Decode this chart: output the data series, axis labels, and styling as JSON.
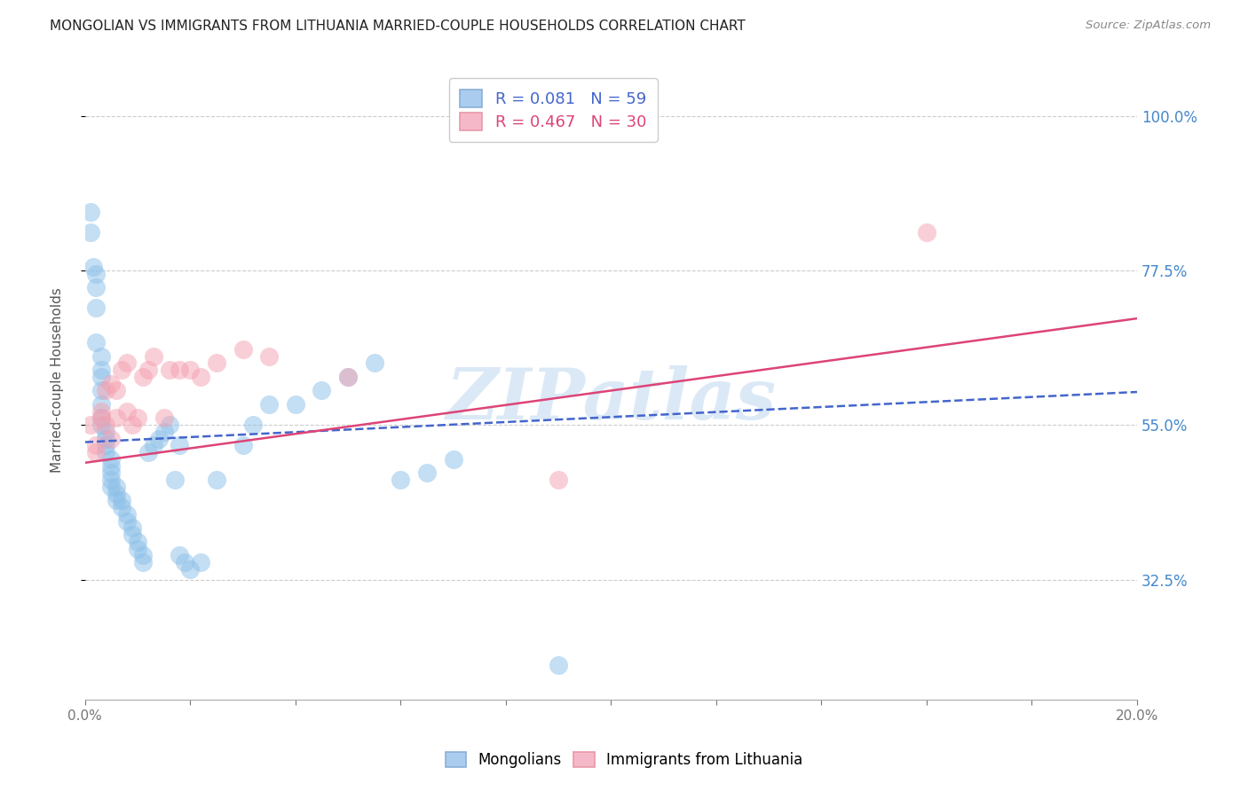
{
  "title": "MONGOLIAN VS IMMIGRANTS FROM LITHUANIA MARRIED-COUPLE HOUSEHOLDS CORRELATION CHART",
  "source": "Source: ZipAtlas.com",
  "ylabel": "Married-couple Households",
  "ytick_labels": [
    "32.5%",
    "55.0%",
    "77.5%",
    "100.0%"
  ],
  "ytick_values": [
    0.325,
    0.55,
    0.775,
    1.0
  ],
  "xmin": 0.0,
  "xmax": 0.2,
  "ymin": 0.15,
  "ymax": 1.08,
  "legend_entry1": "R = 0.081   N = 59",
  "legend_entry2": "R = 0.467   N = 30",
  "watermark": "ZIPatlas",
  "series1_color": "#8bbfe8",
  "series2_color": "#f5a0b0",
  "line1_color": "#4466cc",
  "line2_color": "#dd4477",
  "mongolians_x": [
    0.001,
    0.001,
    0.0015,
    0.002,
    0.002,
    0.002,
    0.002,
    0.003,
    0.003,
    0.003,
    0.003,
    0.003,
    0.003,
    0.003,
    0.004,
    0.004,
    0.004,
    0.004,
    0.005,
    0.005,
    0.005,
    0.005,
    0.005,
    0.006,
    0.006,
    0.006,
    0.007,
    0.007,
    0.008,
    0.008,
    0.009,
    0.009,
    0.01,
    0.01,
    0.011,
    0.011,
    0.012,
    0.013,
    0.014,
    0.015,
    0.016,
    0.017,
    0.018,
    0.019,
    0.02,
    0.022,
    0.025,
    0.03,
    0.032,
    0.035,
    0.04,
    0.045,
    0.05,
    0.055,
    0.06,
    0.065,
    0.07,
    0.09,
    0.018
  ],
  "mongolians_y": [
    0.86,
    0.83,
    0.78,
    0.77,
    0.75,
    0.72,
    0.67,
    0.65,
    0.63,
    0.62,
    0.6,
    0.58,
    0.56,
    0.55,
    0.54,
    0.53,
    0.52,
    0.51,
    0.5,
    0.49,
    0.48,
    0.47,
    0.46,
    0.46,
    0.45,
    0.44,
    0.44,
    0.43,
    0.42,
    0.41,
    0.4,
    0.39,
    0.38,
    0.37,
    0.36,
    0.35,
    0.51,
    0.52,
    0.53,
    0.54,
    0.55,
    0.47,
    0.52,
    0.35,
    0.34,
    0.35,
    0.47,
    0.52,
    0.55,
    0.58,
    0.58,
    0.6,
    0.62,
    0.64,
    0.47,
    0.48,
    0.5,
    0.2,
    0.36
  ],
  "lithuania_x": [
    0.001,
    0.002,
    0.002,
    0.003,
    0.003,
    0.004,
    0.004,
    0.005,
    0.005,
    0.006,
    0.006,
    0.007,
    0.008,
    0.008,
    0.009,
    0.01,
    0.011,
    0.012,
    0.013,
    0.015,
    0.016,
    0.018,
    0.02,
    0.022,
    0.025,
    0.03,
    0.035,
    0.05,
    0.09,
    0.16
  ],
  "lithuania_y": [
    0.55,
    0.52,
    0.51,
    0.56,
    0.57,
    0.55,
    0.6,
    0.53,
    0.61,
    0.56,
    0.6,
    0.63,
    0.64,
    0.57,
    0.55,
    0.56,
    0.62,
    0.63,
    0.65,
    0.56,
    0.63,
    0.63,
    0.63,
    0.62,
    0.64,
    0.66,
    0.65,
    0.62,
    0.47,
    0.83
  ],
  "line1_x": [
    0.0,
    0.2
  ],
  "line1_y": [
    0.525,
    0.598
  ],
  "line2_x": [
    0.0,
    0.2
  ],
  "line2_y": [
    0.495,
    0.705
  ]
}
